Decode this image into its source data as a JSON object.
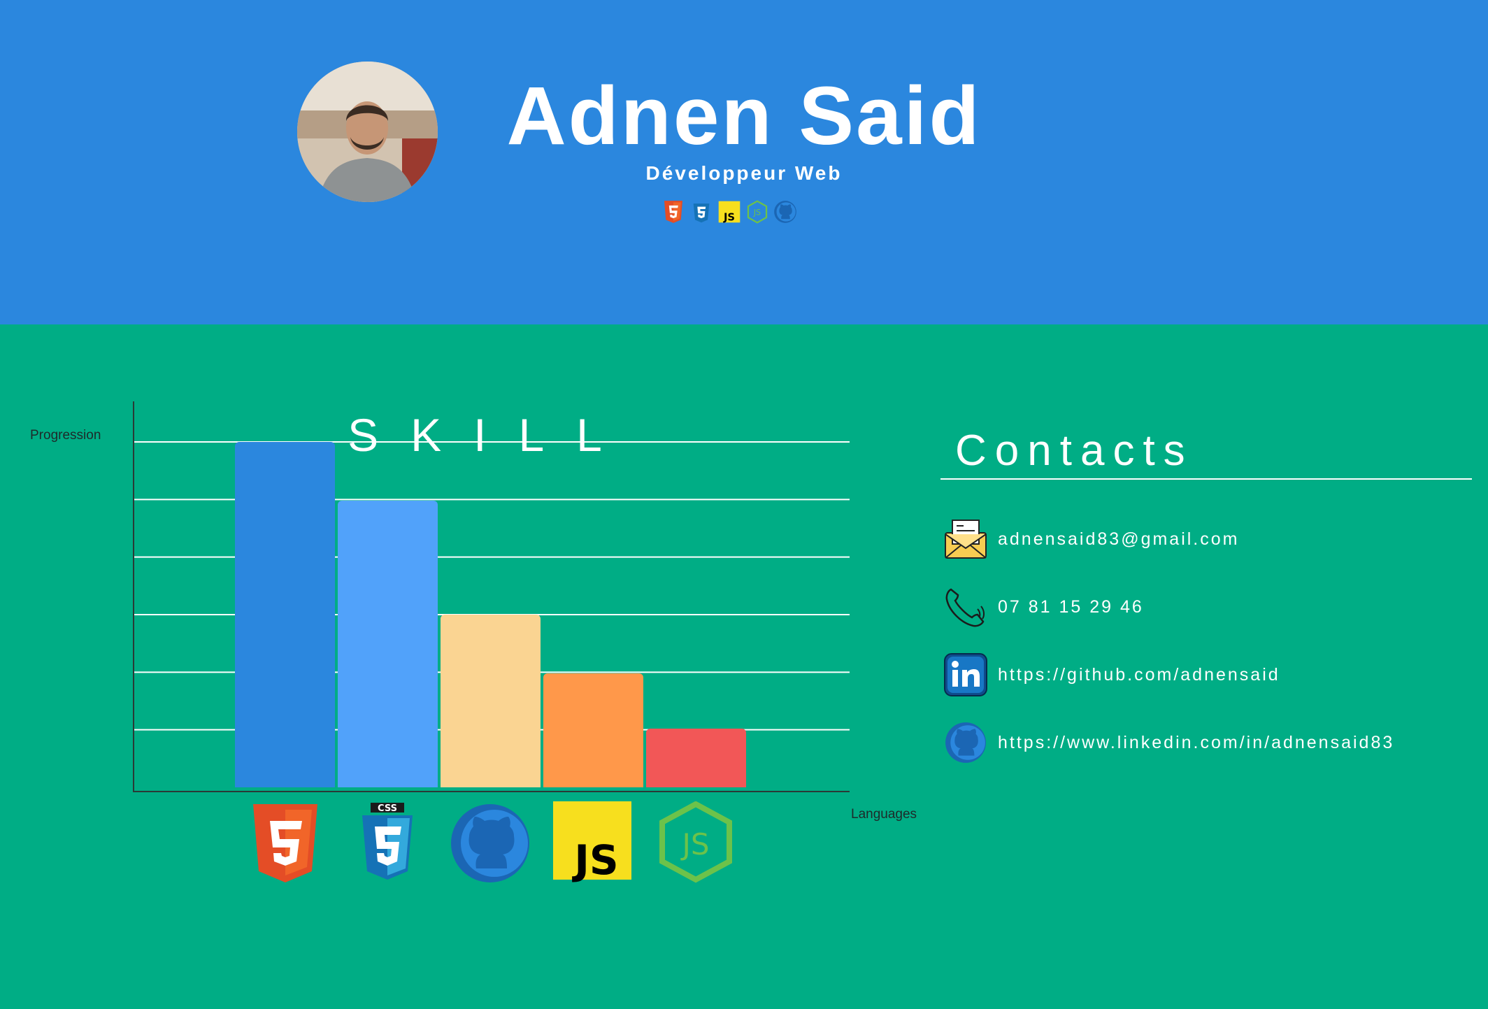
{
  "header": {
    "name": "Adnen Said",
    "role": "Développeur Web",
    "mini_icons": [
      "html5-icon",
      "css3-icon",
      "javascript-icon",
      "nodejs-icon",
      "github-icon"
    ]
  },
  "skills": {
    "title": "SKILL",
    "y_axis_label": "Progression",
    "x_axis_label": "Languages"
  },
  "chart_data": {
    "type": "bar",
    "title": "SKILL",
    "xlabel": "Languages",
    "ylabel": "Progression",
    "categories": [
      "HTML5",
      "CSS3",
      "GitHub",
      "JavaScript",
      "Node.js"
    ],
    "values": [
      100,
      83,
      50,
      33,
      17
    ],
    "ylim": [
      0,
      100
    ],
    "grid": true,
    "colors": [
      "#2b87de",
      "#51a2fa",
      "#fad492",
      "#ff984a",
      "#f25757"
    ],
    "category_icons": [
      "html5-icon",
      "css3-icon",
      "github-icon",
      "javascript-icon",
      "nodejs-icon"
    ]
  },
  "contacts": {
    "title": "Contacts",
    "items": [
      {
        "icon": "envelope-icon",
        "text": "adnensaid83@gmail.com"
      },
      {
        "icon": "phone-icon",
        "text": "07 81 15 29 46"
      },
      {
        "icon": "linkedin-icon",
        "text": "https://github.com/adnensaid"
      },
      {
        "icon": "github-icon",
        "text": "https://www.linkedin.com/in/adnensaid83"
      }
    ]
  },
  "colors": {
    "header_bg": "#2b87de",
    "main_bg": "#00ad85",
    "text": "#ffffff"
  }
}
